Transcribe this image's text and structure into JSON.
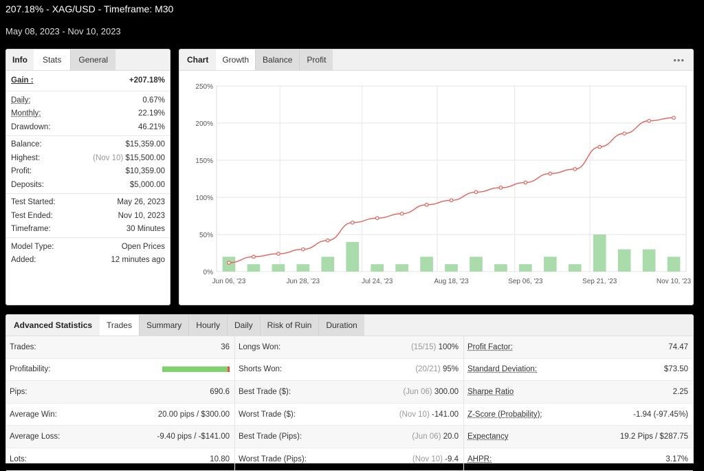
{
  "header": {
    "title": "207.18% - XAG/USD - Timeframe: M30",
    "dates": "May 08, 2023 - Nov 10, 2023"
  },
  "stats_panel": {
    "tabs": [
      "Info",
      "Stats",
      "General"
    ],
    "gain": {
      "label": "Gain :",
      "value": "+207.18%"
    },
    "groups": [
      [
        {
          "label": "Daily:",
          "value": "0.67%",
          "u": true
        },
        {
          "label": "Monthly:",
          "value": "22.19%",
          "u": true
        },
        {
          "label": "Drawdown:",
          "value": "46.21%",
          "u": false
        }
      ],
      [
        {
          "label": "Balance:",
          "value": "$15,359.00",
          "u": false
        },
        {
          "label": "Highest:",
          "value": "$15,500.00",
          "prefix": "(Nov 10)",
          "u": false
        },
        {
          "label": "Profit:",
          "value": "$10,359.00",
          "green": true,
          "u": false
        },
        {
          "label": "Deposits:",
          "value": "$5,000.00",
          "u": false
        }
      ],
      [
        {
          "label": "Test Started:",
          "value": "May 26, 2023",
          "u": false
        },
        {
          "label": "Test Ended:",
          "value": "Nov 10, 2023",
          "u": false
        },
        {
          "label": "Timeframe:",
          "value": "30 Minutes",
          "u": false
        }
      ],
      [
        {
          "label": "Model Type:",
          "value": "Open Prices",
          "u": false
        },
        {
          "label": "Added:",
          "value": "12 minutes ago",
          "u": false
        }
      ]
    ]
  },
  "chart_panel": {
    "tabs": [
      "Chart",
      "Growth",
      "Balance",
      "Profit"
    ],
    "menu": "•••"
  },
  "chart_data": {
    "type": "line",
    "y_ticks": [
      "0%",
      "50%",
      "100%",
      "150%",
      "200%",
      "250%"
    ],
    "ylim": [
      0,
      250
    ],
    "x_tick_labels": [
      "Jun 06, '23",
      "Jun 28, '23",
      "Jul 24, '23",
      "Aug 18, '23",
      "Sep 06, '23",
      "Sep 21, '23",
      "Nov 10, '23"
    ],
    "series": [
      {
        "values": [
          12,
          20,
          24,
          30,
          42,
          66,
          72,
          78,
          90,
          96,
          107,
          113,
          120,
          132,
          138,
          168,
          186,
          203,
          207.18
        ]
      },
      {
        "values": [
          20,
          10,
          10,
          10,
          20,
          40,
          10,
          10,
          20,
          10,
          20,
          10,
          10,
          20,
          10,
          50,
          30,
          30,
          20
        ]
      }
    ],
    "colors": {
      "line": "#e8605a",
      "bars": "#a9dcaa",
      "grid": "#e6e6e6"
    }
  },
  "adv_panel": {
    "tabs": [
      "Advanced Statistics",
      "Trades",
      "Summary",
      "Hourly",
      "Daily",
      "Risk of Ruin",
      "Duration"
    ],
    "col1": [
      {
        "label": "Trades:",
        "value": "36"
      },
      {
        "label": "Profitability:",
        "value": "",
        "bar": true
      },
      {
        "label": "Pips:",
        "value": "690.6"
      },
      {
        "label": "Average Win:",
        "value": "20.00 pips / $300.00"
      },
      {
        "label": "Average Loss:",
        "value": "-9.40 pips / -$141.00"
      },
      {
        "label": "Lots:",
        "value": "10.80"
      }
    ],
    "col2": [
      {
        "label": "Longs Won:",
        "prefix": "(15/15)",
        "value": "100%"
      },
      {
        "label": "Shorts Won:",
        "prefix": "(20/21)",
        "value": "95%"
      },
      {
        "label": "Best Trade ($):",
        "prefix": "(Jun 06)",
        "value": "300.00"
      },
      {
        "label": "Worst Trade ($):",
        "prefix": "(Nov 10)",
        "value": "-141.00"
      },
      {
        "label": "Best Trade (Pips):",
        "prefix": "(Jun 06)",
        "value": "20.0"
      },
      {
        "label": "Worst Trade (Pips):",
        "prefix": "(Nov 10)",
        "value": "-9.4"
      }
    ],
    "col3": [
      {
        "label": "Profit Factor:",
        "value": "74.47",
        "u": true
      },
      {
        "label": "Standard Deviation:",
        "value": "$73.50",
        "u": true
      },
      {
        "label": "Sharpe Ratio",
        "value": "2.25",
        "u": true
      },
      {
        "label": "Z-Score (Probability):",
        "value": "-1.94 (-97.45%)",
        "u": true
      },
      {
        "label": "Expectancy",
        "value": "19.2 Pips / $287.75",
        "u": true
      },
      {
        "label": "AHPR:",
        "value": "3.17%",
        "u": true
      }
    ]
  }
}
